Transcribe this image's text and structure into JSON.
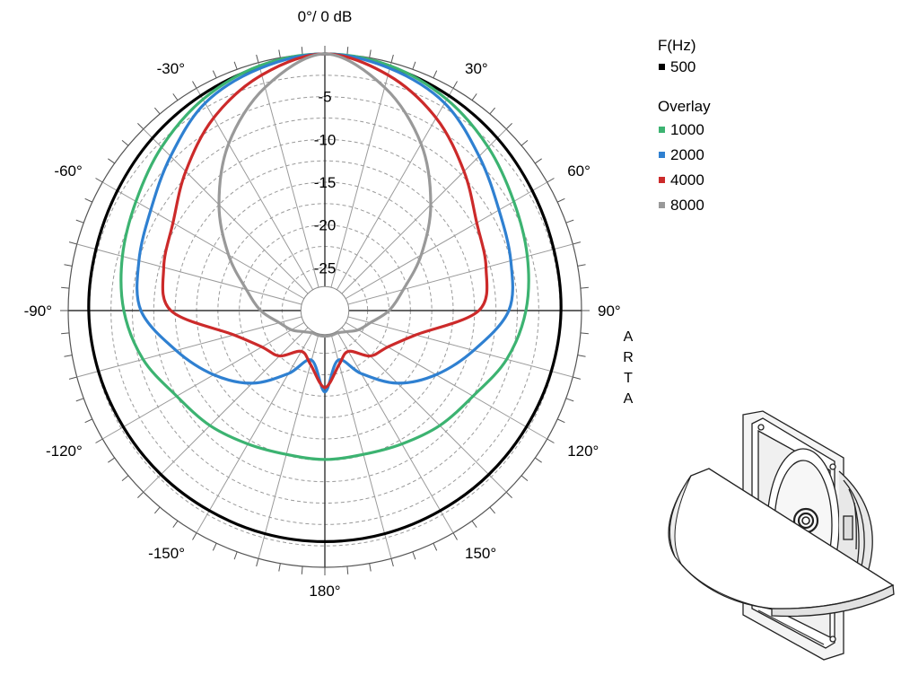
{
  "chart_data": {
    "type": "polar",
    "title": "0°/ 0 dB",
    "radial_unit": "dB",
    "radial_range": [
      -30,
      0
    ],
    "radial_tick_labels": [
      "-5",
      "-10",
      "-15",
      "-20",
      "-25"
    ],
    "radial_tick_values": [
      -5,
      -10,
      -15,
      -20,
      -25
    ],
    "angle_tick_labels": [
      "30°",
      "60°",
      "90°",
      "120°",
      "150°",
      "180°",
      "-150°",
      "-120°",
      "-90°",
      "-60°",
      "-30°"
    ],
    "angle_tick_values": [
      30,
      60,
      90,
      120,
      150,
      180,
      -150,
      -120,
      -90,
      -60,
      -30
    ],
    "grid": true,
    "legend_position": "top-right",
    "legend_header": "F(Hz)",
    "overlay_header": "Overlay",
    "vertical_mark": [
      "A",
      "R",
      "T",
      "A"
    ],
    "angles_deg": [
      0,
      15,
      30,
      45,
      60,
      75,
      90,
      105,
      120,
      135,
      150,
      165,
      180
    ],
    "series": [
      {
        "name": "500",
        "color": "#000000",
        "values_db": [
          0,
          -0.5,
          -1,
          -1.5,
          -2,
          -2.3,
          -2.4,
          -2.6,
          -2.8,
          -2.9,
          -3,
          -3,
          -3
        ]
      },
      {
        "name": "1000",
        "color": "#3cb371",
        "values_db": [
          0,
          -0.4,
          -1.5,
          -3,
          -4.5,
          -5.5,
          -6.5,
          -8,
          -10,
          -11,
          -12,
          -12.6,
          -12.6
        ]
      },
      {
        "name": "2000",
        "color": "#2f80d1",
        "values_db": [
          0,
          -0.7,
          -2,
          -4.5,
          -6.5,
          -7.5,
          -8.5,
          -12,
          -15,
          -18,
          -21.5,
          -24,
          -20.5
        ]
      },
      {
        "name": "4000",
        "color": "#cc2a2a",
        "values_db": [
          0,
          -1.5,
          -4,
          -7,
          -9.5,
          -10.5,
          -12,
          -19,
          -21.5,
          -22.5,
          -24.5,
          -23.5,
          -21
        ]
      },
      {
        "name": "8000",
        "color": "#999999",
        "values_db": [
          0,
          -3,
          -7.5,
          -12.5,
          -17,
          -20.5,
          -22.5,
          -24.5,
          -25.5,
          -26.5,
          -27,
          -27,
          -27
        ]
      }
    ]
  },
  "illustration": {
    "name": "speaker-driver-with-baffle"
  }
}
